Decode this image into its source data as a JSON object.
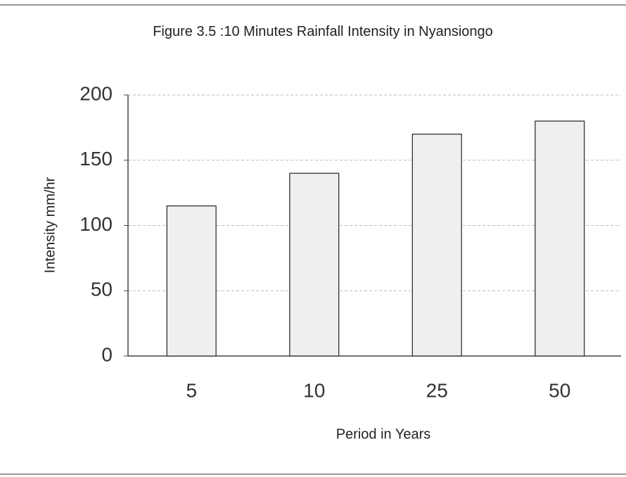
{
  "chart_data": {
    "type": "bar",
    "title": "Figure 3.5 :10 Minutes Rainfall Intensity in Nyansiongo",
    "x_label": "Period in Years",
    "y_label": "Intensity mm/hr",
    "categories": [
      "5",
      "10",
      "25",
      "50"
    ],
    "values": [
      115,
      140,
      170,
      180
    ],
    "color": "#efefef",
    "ylim": [
      0,
      200
    ],
    "yticks": [
      0,
      50,
      100,
      150,
      200
    ],
    "grid": true
  }
}
